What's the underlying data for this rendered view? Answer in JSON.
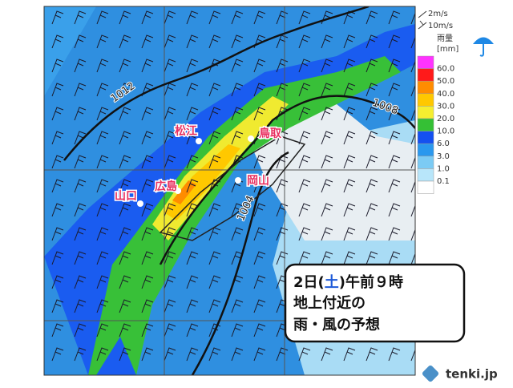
{
  "wind_legend": [
    "2m/s",
    "10m/s"
  ],
  "rain_legend": {
    "title": "雨量",
    "unit": "[mm]",
    "labels": [
      "60.0",
      "50.0",
      "40.0",
      "30.0",
      "20.0",
      "10.0",
      "6.0",
      "3.0",
      "1.0",
      "0.1"
    ],
    "colors": [
      "#ff33ff",
      "#ff1a1a",
      "#ff8c00",
      "#ffc800",
      "#f5ee30",
      "#35c035",
      "#1450f0",
      "#2a98ee",
      "#7ccbf4",
      "#b8e6fa",
      "#ffffff"
    ]
  },
  "cities": [
    "松江",
    "鳥取",
    "広島",
    "山口",
    "岡山"
  ],
  "isobars": [
    "1012",
    "1008",
    "1004"
  ],
  "caption": {
    "line1": [
      "2日(",
      "土",
      ")午前９時"
    ],
    "line2": "地上付近の",
    "line3": "雨・風の予想"
  },
  "logo": "tenki.jp"
}
